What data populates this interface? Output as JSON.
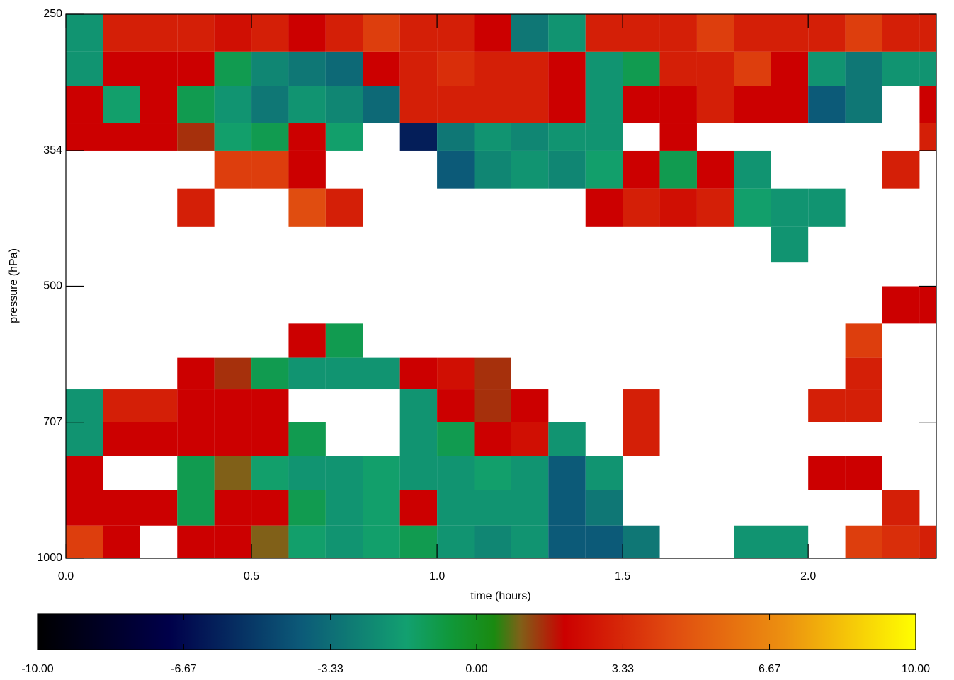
{
  "chart_data": {
    "type": "heatmap",
    "xlabel": "time (hours)",
    "ylabel": "pressure (hPa)",
    "xlim": [
      0,
      2.345
    ],
    "ylim": [
      250,
      1000
    ],
    "ylog": true,
    "y_reversed": true,
    "xticks": [
      {
        "value": 0,
        "label": "0.0"
      },
      0.5,
      {
        "value": 1,
        "label": "1.0"
      },
      1.5,
      {
        "value": 2,
        "label": "2.0"
      }
    ],
    "yticks": [
      250,
      354,
      500,
      707,
      1000
    ],
    "x_edges": [
      0,
      0.1,
      0.2,
      0.3,
      0.4,
      0.5,
      0.6,
      0.7,
      0.8,
      0.9,
      1.0,
      1.1,
      1.2,
      1.3,
      1.4,
      1.5,
      1.6,
      1.7,
      1.8,
      1.9,
      2.0,
      2.1,
      2.2,
      2.3,
      2.345
    ],
    "y_edges": [
      250,
      275,
      300,
      330,
      354,
      390,
      430,
      470,
      500,
      550,
      600,
      650,
      707,
      770,
      840,
      920,
      1000
    ],
    "values": [
      [
        -2,
        3,
        3,
        3,
        2.5,
        3,
        2,
        3,
        4,
        3,
        3,
        2,
        -3,
        -2,
        3,
        3,
        3,
        4,
        3,
        3,
        3,
        4,
        3,
        3
      ],
      [
        -2,
        2,
        2,
        2,
        -1,
        -2.5,
        -3,
        -3.5,
        2,
        3,
        3.5,
        3,
        3,
        2,
        -2,
        -1,
        3,
        3,
        4,
        2,
        -2,
        -3,
        -2,
        -2
      ],
      [
        2,
        -1.5,
        2,
        -1,
        -2,
        -3,
        -2,
        -2.5,
        -3.5,
        3,
        3,
        3,
        3,
        2,
        -2,
        2,
        2,
        3,
        2,
        2,
        -4,
        -3,
        null,
        2
      ],
      [
        2,
        2,
        2,
        1.5,
        -1.5,
        -1,
        2,
        -1.5,
        null,
        -6,
        -3,
        -2,
        -2.5,
        -2,
        -2,
        null,
        2,
        null,
        null,
        null,
        null,
        null,
        null,
        3
      ],
      [
        null,
        null,
        null,
        null,
        4,
        4,
        2,
        null,
        null,
        null,
        -4,
        -2.5,
        -2,
        -2.5,
        -1.5,
        2,
        -1,
        2,
        -2,
        null,
        null,
        null,
        3,
        null
      ],
      [
        null,
        null,
        null,
        3,
        null,
        null,
        4.5,
        3,
        null,
        null,
        null,
        null,
        null,
        null,
        2,
        3,
        2.5,
        3,
        -1.5,
        -2,
        -2,
        null,
        null,
        null
      ],
      [
        null,
        null,
        null,
        null,
        null,
        null,
        null,
        null,
        null,
        null,
        null,
        null,
        null,
        null,
        null,
        null,
        null,
        null,
        null,
        -2,
        null,
        null,
        null,
        null
      ],
      [
        null,
        null,
        null,
        null,
        null,
        null,
        null,
        null,
        null,
        null,
        null,
        null,
        null,
        null,
        null,
        null,
        null,
        null,
        null,
        null,
        null,
        null,
        null,
        null
      ],
      [
        null,
        null,
        null,
        null,
        null,
        null,
        null,
        null,
        null,
        null,
        null,
        null,
        null,
        null,
        null,
        null,
        null,
        null,
        null,
        null,
        null,
        null,
        2,
        2
      ],
      [
        null,
        null,
        null,
        null,
        null,
        null,
        2,
        -1,
        null,
        null,
        null,
        null,
        null,
        null,
        null,
        null,
        null,
        null,
        null,
        null,
        null,
        4,
        null,
        null
      ],
      [
        null,
        null,
        null,
        2,
        1.5,
        -1,
        -2,
        -2,
        -2,
        2,
        2.5,
        1.5,
        null,
        null,
        null,
        null,
        null,
        null,
        null,
        null,
        null,
        3,
        null,
        null
      ],
      [
        -2,
        3,
        3,
        2,
        2,
        2,
        null,
        null,
        null,
        -2,
        2,
        1.5,
        2,
        null,
        null,
        3,
        null,
        null,
        null,
        null,
        3,
        3,
        null,
        null
      ],
      [
        -2,
        2,
        2,
        2,
        2,
        2,
        -1,
        null,
        null,
        -2,
        -1,
        2,
        2.5,
        -2,
        null,
        3,
        null,
        null,
        null,
        null,
        null,
        null,
        null,
        null
      ],
      [
        2,
        null,
        null,
        -1,
        1,
        -1.5,
        -2,
        -2,
        -1.5,
        -2,
        -2,
        -1.5,
        -2,
        -4,
        -2,
        null,
        null,
        null,
        null,
        null,
        2,
        2,
        null,
        null
      ],
      [
        2,
        2,
        2,
        -1,
        2,
        2,
        -1,
        -2,
        -1.5,
        2,
        -2,
        -2,
        -2,
        -4,
        -3,
        null,
        null,
        null,
        null,
        null,
        null,
        null,
        3,
        null
      ],
      [
        4,
        2,
        null,
        2,
        2,
        1,
        -1.5,
        -2,
        -1.5,
        -1,
        -2,
        -2.5,
        -2,
        -4,
        -4,
        -3,
        null,
        null,
        -2,
        -2,
        null,
        4,
        3.5,
        3
      ]
    ],
    "zlim": [
      -10,
      10
    ],
    "colorbar_ticks": [
      {
        "value": -10,
        "label": "-10.00"
      },
      -6.67,
      -3.33,
      {
        "value": 0,
        "label": "0.00"
      },
      3.33,
      6.67,
      {
        "value": 10,
        "label": "10.00"
      }
    ]
  }
}
